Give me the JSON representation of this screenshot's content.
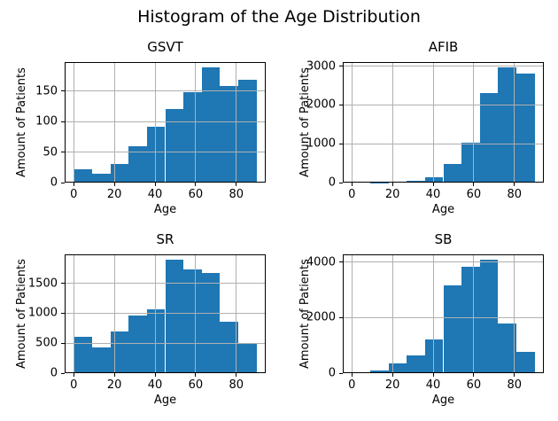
{
  "figure": {
    "suptitle": "Histogram of the Age Distribution"
  },
  "chart_data": [
    {
      "type": "bar",
      "subtype": "histogram",
      "title": "GSVT",
      "xlabel": "Age",
      "ylabel": "Amount of Patients",
      "bin_edges": [
        0,
        9,
        18,
        27,
        36,
        45,
        54,
        63,
        72,
        81,
        90
      ],
      "counts": [
        22,
        15,
        31,
        59,
        92,
        121,
        148,
        188,
        158,
        168
      ],
      "xticks": [
        0,
        20,
        40,
        60,
        80
      ],
      "yticks": [
        0,
        50,
        100,
        150
      ],
      "xlim": [
        -4.5,
        94.5
      ],
      "ylim": [
        0,
        197.4
      ],
      "bar_color": "#1f77b4",
      "grid": true,
      "grid_color": "#b0b0b0"
    },
    {
      "type": "bar",
      "subtype": "histogram",
      "title": "AFIB",
      "xlabel": "Age",
      "ylabel": "Amount of Patients",
      "bin_edges": [
        0,
        9,
        18,
        27,
        36,
        45,
        54,
        63,
        72,
        81,
        90
      ],
      "counts": [
        25,
        8,
        20,
        50,
        140,
        480,
        1020,
        2300,
        2960,
        2820
      ],
      "xticks": [
        0,
        20,
        40,
        60,
        80
      ],
      "yticks": [
        0,
        1000,
        2000,
        3000
      ],
      "xlim": [
        -4.5,
        94.5
      ],
      "ylim": [
        0,
        3108
      ],
      "bar_color": "#1f77b4",
      "grid": true,
      "grid_color": "#b0b0b0"
    },
    {
      "type": "bar",
      "subtype": "histogram",
      "title": "SR",
      "xlabel": "Age",
      "ylabel": "Amount of Patients",
      "bin_edges": [
        0,
        9,
        18,
        27,
        36,
        45,
        54,
        63,
        72,
        81,
        90
      ],
      "counts": [
        600,
        430,
        700,
        970,
        1060,
        1890,
        1730,
        1670,
        860,
        500
      ],
      "xticks": [
        0,
        20,
        40,
        60,
        80
      ],
      "yticks": [
        0,
        500,
        1000,
        1500
      ],
      "xlim": [
        -4.5,
        94.5
      ],
      "ylim": [
        0,
        1984.5
      ],
      "bar_color": "#1f77b4",
      "grid": true,
      "grid_color": "#b0b0b0"
    },
    {
      "type": "bar",
      "subtype": "histogram",
      "title": "SB",
      "xlabel": "Age",
      "ylabel": "Amount of Patients",
      "bin_edges": [
        0,
        9,
        18,
        27,
        36,
        45,
        54,
        63,
        72,
        81,
        90
      ],
      "counts": [
        30,
        80,
        350,
        650,
        1200,
        3150,
        3820,
        4070,
        1800,
        760
      ],
      "xticks": [
        0,
        20,
        40,
        60,
        80
      ],
      "yticks": [
        0,
        2000,
        4000
      ],
      "xlim": [
        -4.5,
        94.5
      ],
      "ylim": [
        0,
        4273.5
      ],
      "bar_color": "#1f77b4",
      "grid": true,
      "grid_color": "#b0b0b0"
    }
  ]
}
